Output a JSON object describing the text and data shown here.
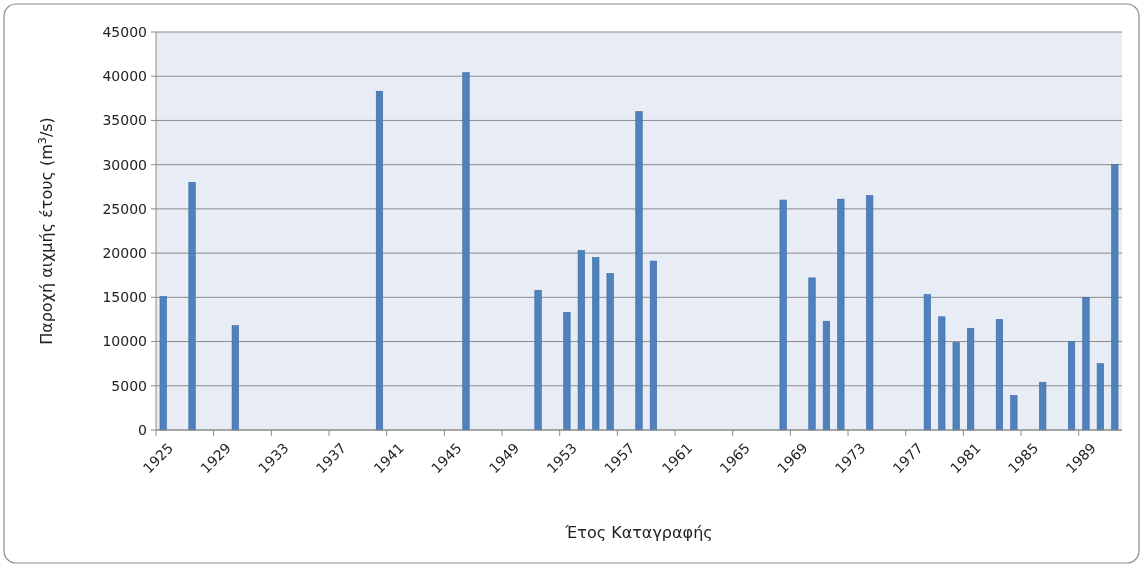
{
  "chart_data": {
    "type": "bar",
    "xlabel": "Έτος Καταγραφής",
    "ylabel": "Παροχή αιχμής έτους (m$^{3}$/s)",
    "categories": [
      "1925",
      null,
      null,
      null,
      "1929",
      null,
      null,
      null,
      "1933",
      null,
      null,
      null,
      "1937",
      null,
      null,
      null,
      "1941",
      null,
      null,
      null,
      "1945",
      null,
      null,
      null,
      "1949",
      null,
      null,
      null,
      "1953",
      null,
      null,
      null,
      "1957",
      null,
      null,
      null,
      "1961",
      null,
      null,
      null,
      "1965",
      null,
      null,
      null,
      "1969",
      null,
      null,
      null,
      "1973",
      null,
      null,
      null,
      "1977",
      null,
      null,
      null,
      "1981",
      null,
      null,
      null,
      "1985",
      null,
      null,
      null,
      "1989",
      null,
      null
    ],
    "values": [
      15100,
      null,
      28000,
      null,
      null,
      11800,
      null,
      null,
      null,
      null,
      null,
      null,
      null,
      null,
      null,
      38300,
      null,
      null,
      null,
      null,
      null,
      40400,
      null,
      null,
      null,
      null,
      15800,
      null,
      13300,
      20300,
      19500,
      17700,
      null,
      36000,
      19100,
      null,
      null,
      null,
      null,
      null,
      null,
      null,
      null,
      26000,
      null,
      17200,
      12300,
      26100,
      null,
      26500,
      null,
      null,
      null,
      15300,
      12800,
      9900,
      11500,
      null,
      12500,
      3900,
      null,
      5400,
      null,
      10000,
      15000,
      7500,
      30000
    ],
    "color": "#4f81bd",
    "ylim": [
      0,
      45000
    ],
    "yticks": [
      0,
      5000,
      10000,
      15000,
      20000,
      25000,
      30000,
      35000,
      40000,
      45000
    ],
    "grid": "y"
  }
}
